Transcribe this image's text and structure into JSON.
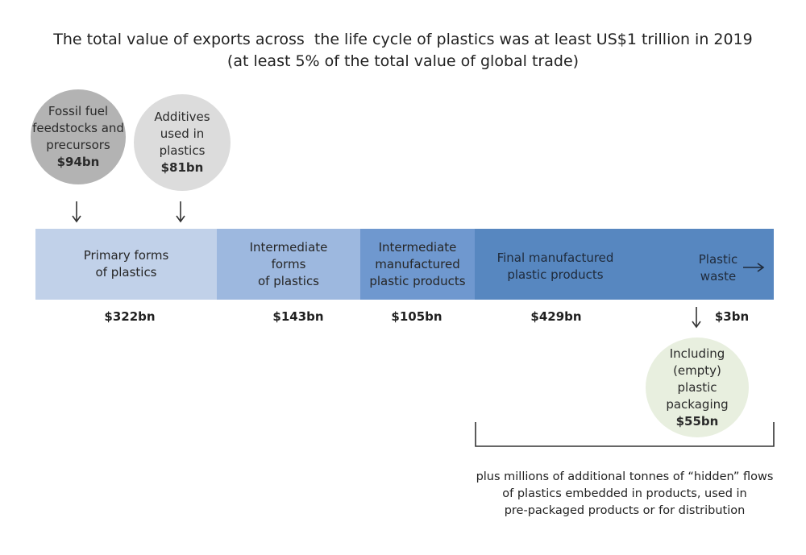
{
  "title": {
    "line1": "The total value of exports across  the life cycle of plastics was at least US$1 trillion in 2019",
    "line2": "(at least 5% of the total value of global trade)"
  },
  "inputs": [
    {
      "label_lines": [
        "Fossil fuel",
        "feedstocks and",
        "precursors"
      ],
      "value": "$94bn",
      "color": "#b3b3b3"
    },
    {
      "label_lines": [
        "Additives",
        "used in",
        "plastics"
      ],
      "value": "$81bn",
      "color": "#dcdcdc"
    }
  ],
  "stages": [
    {
      "label_lines": [
        "Primary forms",
        "of plastics"
      ],
      "value": "$322bn",
      "color": "#c1d1e9"
    },
    {
      "label_lines": [
        "Intermediate",
        "forms",
        "of plastics"
      ],
      "value": "$143bn",
      "color": "#9db8df"
    },
    {
      "label_lines": [
        "Intermediate",
        "manufactured",
        "plastic products"
      ],
      "value": "$105bn",
      "color": "#6f98cf"
    },
    {
      "label_lines": [
        "Final manufactured",
        "plastic products"
      ],
      "value": "$429bn",
      "color": "#5787c0"
    },
    {
      "label_lines": [
        "Plastic",
        "waste"
      ],
      "value": "$3bn",
      "color": "#5787c0"
    }
  ],
  "packaging": {
    "label_lines": [
      "Including",
      "(empty)",
      "plastic",
      "packaging"
    ],
    "value": "$55bn",
    "color": "#e8efdf"
  },
  "note": {
    "lines": [
      "plus millions of additional tonnes of “hidden” flows",
      "of plastics embedded in products, used in",
      "pre-packaged products or for distribution"
    ]
  }
}
